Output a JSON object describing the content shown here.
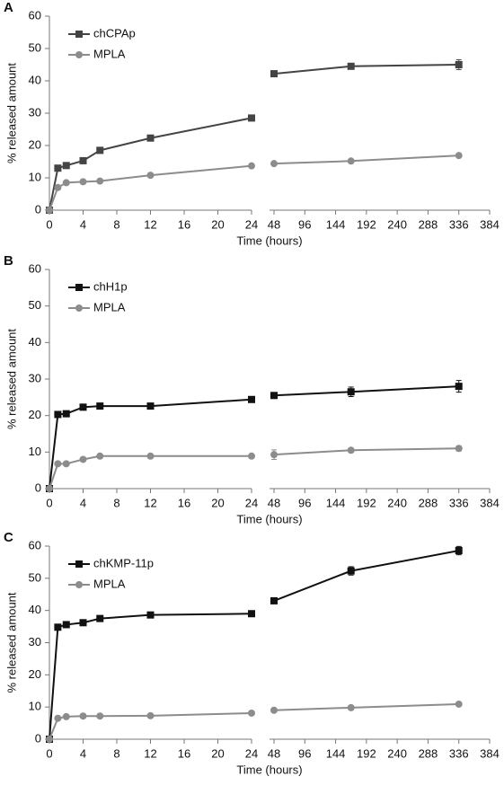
{
  "chart_data": [
    {
      "type": "line",
      "panel": "A",
      "xlabel": "Time (hours)",
      "ylabel": "% released amount",
      "x": [
        0,
        1,
        2,
        4,
        6,
        12,
        24,
        48,
        168,
        336
      ],
      "x_segments": [
        {
          "xlim": [
            0,
            24
          ],
          "xticks": [
            0,
            4,
            8,
            12,
            16,
            20,
            24
          ]
        },
        {
          "xlim": [
            48,
            384
          ],
          "xticks": [
            48,
            96,
            144,
            192,
            240,
            288,
            336,
            384
          ]
        }
      ],
      "ylim": [
        0,
        60
      ],
      "yticks": [
        0,
        10,
        20,
        30,
        40,
        50,
        60
      ],
      "series": [
        {
          "name": "chCPAp",
          "color": "#444444",
          "marker": "square",
          "values": [
            0,
            13,
            13.8,
            15.3,
            18.5,
            22.3,
            28.5,
            42.2,
            44.5,
            45
          ],
          "errors": [
            0,
            0.5,
            0.5,
            0.5,
            0.5,
            0.5,
            0.8,
            0.6,
            0.8,
            1.5
          ]
        },
        {
          "name": "MPLA",
          "color": "#8c8c8c",
          "marker": "circle",
          "values": [
            0,
            7,
            8.5,
            8.8,
            9,
            10.8,
            13.7,
            14.4,
            15.2,
            16.9
          ],
          "errors": [
            0,
            0.4,
            0.4,
            0.4,
            0.4,
            0.4,
            0.4,
            0.4,
            0.4,
            0.5
          ]
        }
      ]
    },
    {
      "type": "line",
      "panel": "B",
      "xlabel": "Time (hours)",
      "ylabel": "% released amount",
      "x": [
        0,
        1,
        2,
        4,
        6,
        12,
        24,
        48,
        168,
        336
      ],
      "x_segments": [
        {
          "xlim": [
            0,
            24
          ],
          "xticks": [
            0,
            4,
            8,
            12,
            16,
            20,
            24
          ]
        },
        {
          "xlim": [
            48,
            384
          ],
          "xticks": [
            48,
            96,
            144,
            192,
            240,
            288,
            336,
            384
          ]
        }
      ],
      "ylim": [
        0,
        60
      ],
      "yticks": [
        0,
        10,
        20,
        30,
        40,
        50,
        60
      ],
      "series": [
        {
          "name": "chH1p",
          "color": "#111111",
          "marker": "square",
          "values": [
            0,
            20.3,
            20.5,
            22.3,
            22.6,
            22.6,
            24.4,
            25.5,
            26.5,
            28
          ],
          "errors": [
            0,
            0.5,
            0.5,
            0.6,
            0.5,
            0.5,
            0.5,
            0.8,
            1.3,
            1.6
          ]
        },
        {
          "name": "MPLA",
          "color": "#8c8c8c",
          "marker": "circle",
          "values": [
            0,
            6.8,
            6.8,
            8,
            8.9,
            8.9,
            8.9,
            9.3,
            10.5,
            11
          ],
          "errors": [
            0,
            0.4,
            0.4,
            0.4,
            0.4,
            0.3,
            0.3,
            1.3,
            0.5,
            0.7
          ]
        }
      ]
    },
    {
      "type": "line",
      "panel": "C",
      "xlabel": "Time (hours)",
      "ylabel": "% released amount",
      "x": [
        0,
        1,
        2,
        4,
        6,
        12,
        24,
        48,
        168,
        336
      ],
      "x_segments": [
        {
          "xlim": [
            0,
            24
          ],
          "xticks": [
            0,
            4,
            8,
            12,
            16,
            20,
            24
          ]
        },
        {
          "xlim": [
            48,
            384
          ],
          "xticks": [
            48,
            96,
            144,
            192,
            240,
            288,
            336,
            384
          ]
        }
      ],
      "ylim": [
        0,
        60
      ],
      "yticks": [
        0,
        10,
        20,
        30,
        40,
        50,
        60
      ],
      "series": [
        {
          "name": "chKMP-11p",
          "color": "#111111",
          "marker": "square",
          "values": [
            0,
            34.8,
            35.6,
            36.2,
            37.5,
            38.6,
            39,
            43,
            52.3,
            58.6
          ],
          "errors": [
            0,
            0.6,
            0.6,
            0.6,
            0.6,
            0.6,
            0.6,
            0.6,
            1.3,
            1.3
          ]
        },
        {
          "name": "MPLA",
          "color": "#8c8c8c",
          "marker": "circle",
          "values": [
            0,
            6.5,
            7,
            7.2,
            7.2,
            7.3,
            8.1,
            9,
            9.8,
            10.9
          ],
          "errors": [
            0,
            0.3,
            0.3,
            0.3,
            0.3,
            0.3,
            0.3,
            0.4,
            0.5,
            0.5
          ]
        }
      ]
    }
  ]
}
